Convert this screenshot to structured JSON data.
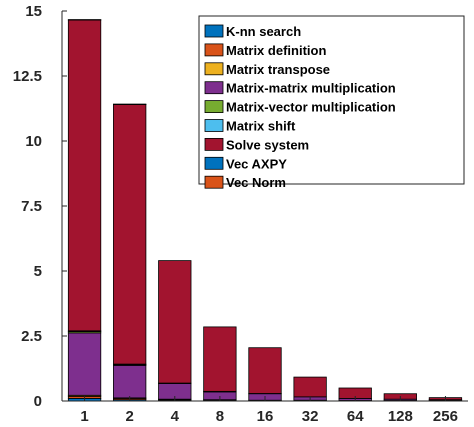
{
  "chart_data": {
    "type": "bar",
    "stacked": true,
    "title": "",
    "xlabel": "",
    "ylabel": "",
    "categories": [
      "1",
      "2",
      "4",
      "8",
      "16",
      "32",
      "64",
      "128",
      "256"
    ],
    "ylim": [
      0,
      15
    ],
    "yticks": [
      0,
      2.5,
      5,
      7.5,
      10,
      12.5,
      15
    ],
    "ytick_labels": [
      "0",
      "2.5",
      "5",
      "7.5",
      "10",
      "12.5",
      "15"
    ],
    "grid": false,
    "legend_position": "top-right",
    "series": [
      {
        "name": "K-nn search",
        "color": "#0072BD",
        "values": [
          0.1,
          0.05,
          0.03,
          0.02,
          0.01,
          0.01,
          0.01,
          0.01,
          0.01
        ]
      },
      {
        "name": "Matrix definition",
        "color": "#D95319",
        "values": [
          0.08,
          0.05,
          0.03,
          0.02,
          0.01,
          0.01,
          0.01,
          0.01,
          0.01
        ]
      },
      {
        "name": "Matrix transpose",
        "color": "#EDB120",
        "values": [
          0.04,
          0.02,
          0.01,
          0.01,
          0.01,
          0.01,
          0.0,
          0.0,
          0.0
        ]
      },
      {
        "name": "Matrix-matrix multiplication",
        "color": "#7E2F8E",
        "values": [
          2.4,
          1.25,
          0.6,
          0.3,
          0.25,
          0.13,
          0.08,
          0.05,
          0.03
        ]
      },
      {
        "name": "Matrix-vector multiplication",
        "color": "#77AC30",
        "values": [
          0.05,
          0.03,
          0.01,
          0.01,
          0.01,
          0.0,
          0.0,
          0.0,
          0.0
        ]
      },
      {
        "name": "Matrix shift",
        "color": "#4DBEEE",
        "values": [
          0.03,
          0.02,
          0.01,
          0.01,
          0.0,
          0.0,
          0.0,
          0.0,
          0.0
        ]
      },
      {
        "name": "Solve system",
        "color": "#A2142F",
        "values": [
          11.95,
          9.98,
          4.71,
          2.48,
          1.76,
          0.76,
          0.4,
          0.21,
          0.08
        ]
      },
      {
        "name": "Vec AXPY",
        "color": "#0072BD",
        "values": [
          0.01,
          0.01,
          0.0,
          0.0,
          0.0,
          0.0,
          0.0,
          0.0,
          0.0
        ]
      },
      {
        "name": "Vec Norm",
        "color": "#D95319",
        "values": [
          0.01,
          0.01,
          0.0,
          0.0,
          0.0,
          0.0,
          0.0,
          0.0,
          0.0
        ]
      }
    ]
  }
}
